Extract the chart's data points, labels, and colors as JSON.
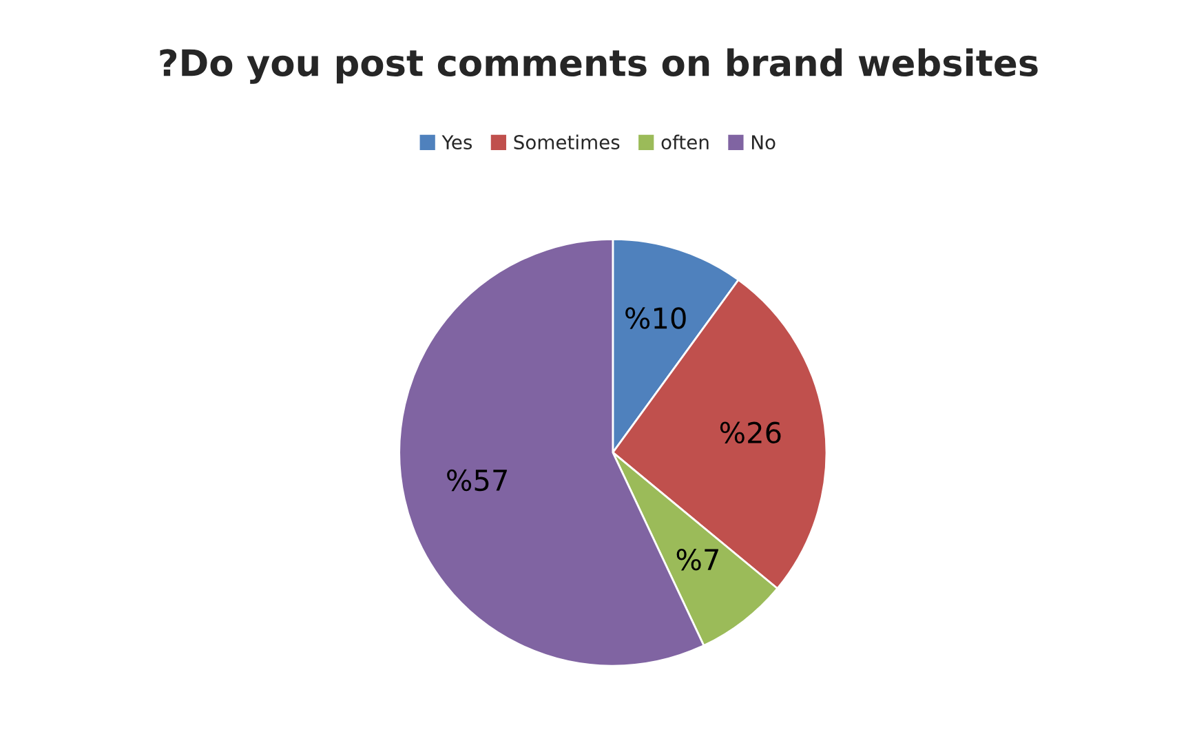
{
  "chart_data": {
    "type": "pie",
    "title": "?Do you post comments on brand websites",
    "categories": [
      "Yes",
      "Sometimes",
      "often",
      "No"
    ],
    "values": [
      10,
      26,
      7,
      57
    ],
    "colors": [
      "#4f81bd",
      "#c0504d",
      "#9bbb59",
      "#8064a2"
    ],
    "value_labels": [
      "%10",
      "%26",
      "%7",
      "%57"
    ],
    "legend": "top"
  }
}
